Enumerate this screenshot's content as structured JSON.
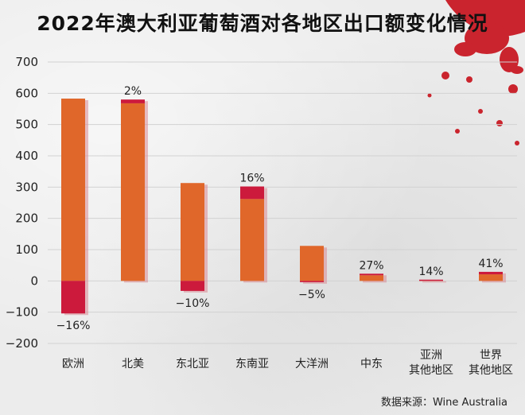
{
  "chart_data": {
    "type": "bar",
    "title": "2022年澳大利亚葡萄酒对各地区出口额变化情况",
    "categories": [
      "欧洲",
      "北美",
      "东北亚",
      "东南亚",
      "大洋洲",
      "中东",
      "亚洲\n其他地区",
      "世界\n其他地区"
    ],
    "series": [
      {
        "values": [
          583,
          568,
          313,
          262,
          112,
          18,
          3,
          21
        ]
      },
      {
        "values": [
          -104,
          12,
          -32,
          40,
          -4,
          5,
          1,
          8
        ]
      }
    ],
    "change_labels": [
      "−16%",
      "2%",
      "−10%",
      "16%",
      "−5%",
      "27%",
      "14%",
      "41%"
    ],
    "ylim": [
      -200,
      700
    ],
    "yticks": [
      -200,
      -100,
      0,
      100,
      200,
      300,
      400,
      500,
      600,
      700
    ],
    "ytick_labels": [
      "−200",
      "−100",
      "0",
      "100",
      "200",
      "300",
      "400",
      "500",
      "600",
      "700"
    ],
    "grid": true,
    "colors": {
      "base": "#e0672a",
      "change": "#cc1a3c",
      "shadow": "#d98a94"
    }
  },
  "source_text": "数据来源：Wine Australia"
}
